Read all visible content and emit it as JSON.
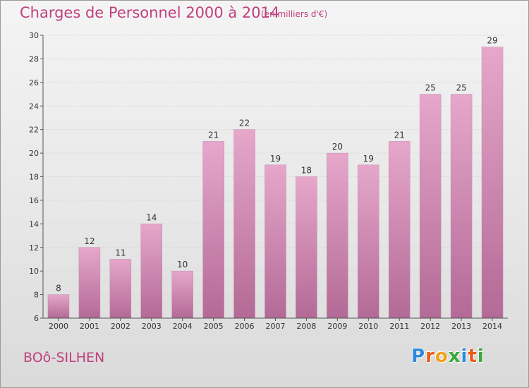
{
  "header": {
    "title": "Charges de Personnel 2000 à 2014",
    "subtitle": "(en milliers d'€)"
  },
  "footer": {
    "town": "BOô-SILHEN",
    "logo_letters": [
      "P",
      "r",
      "o",
      "x",
      "i",
      "t",
      "i"
    ],
    "logo_colors": [
      "#2e8ad8",
      "#e85c18",
      "#f3a11a",
      "#3aa83a",
      "#2e8ad8",
      "#e85c18",
      "#3aa83a"
    ]
  },
  "colors": {
    "accent": "#c0407e",
    "bar_top": "#e6a7cb",
    "bar_bottom": "#b36a96"
  },
  "chart_data": {
    "type": "bar",
    "title": "Charges de Personnel 2000 à 2014",
    "subtitle": "(en milliers d'€)",
    "categories": [
      "2000",
      "2001",
      "2002",
      "2003",
      "2004",
      "2005",
      "2006",
      "2007",
      "2008",
      "2009",
      "2010",
      "2011",
      "2012",
      "2013",
      "2014"
    ],
    "values": [
      8,
      12,
      11,
      14,
      10,
      21,
      22,
      19,
      18,
      20,
      19,
      21,
      25,
      25,
      29
    ],
    "ylim": [
      6,
      30
    ],
    "yticks": [
      6,
      8,
      10,
      12,
      14,
      16,
      18,
      20,
      22,
      24,
      26,
      28,
      30
    ],
    "grid": true,
    "data_labels": true
  }
}
